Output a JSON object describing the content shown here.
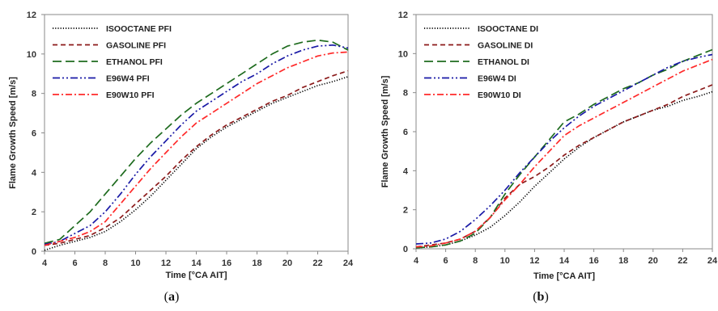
{
  "chart_data": [
    {
      "type": "line",
      "caption_prefix": "(",
      "caption_letter": "a",
      "caption_suffix": ")",
      "xlabel": "Time [°CA AIT]",
      "ylabel": "Flame Growth Speed [m/s]",
      "xlim": [
        4,
        24
      ],
      "ylim": [
        0,
        12
      ],
      "xticks": [
        "4",
        "6",
        "8",
        "10",
        "12",
        "14",
        "16",
        "18",
        "20",
        "22",
        "24"
      ],
      "yticks": [
        "0",
        "2",
        "4",
        "6",
        "8",
        "10",
        "12"
      ],
      "legend_position": "top-left",
      "grid": false,
      "series": [
        {
          "name": "ISOOCTANE PFI",
          "color": "#000000",
          "dash": "dotted",
          "x": [
            4,
            5,
            6,
            7,
            8,
            9,
            10,
            11,
            12,
            13,
            14,
            15,
            16,
            17,
            18,
            19,
            20,
            21,
            22,
            23,
            24
          ],
          "y": [
            0.05,
            0.3,
            0.5,
            0.7,
            1.0,
            1.5,
            2.1,
            2.8,
            3.6,
            4.4,
            5.2,
            5.8,
            6.3,
            6.7,
            7.1,
            7.5,
            7.8,
            8.1,
            8.4,
            8.6,
            8.85
          ]
        },
        {
          "name": "GASOLINE PFI",
          "color": "#8b1a1a",
          "dash": "dashed",
          "x": [
            4,
            5,
            6,
            7,
            8,
            9,
            10,
            11,
            12,
            13,
            14,
            15,
            16,
            17,
            18,
            19,
            20,
            21,
            22,
            23,
            24
          ],
          "y": [
            0.3,
            0.4,
            0.6,
            0.8,
            1.2,
            1.7,
            2.4,
            3.1,
            3.8,
            4.6,
            5.3,
            5.9,
            6.4,
            6.8,
            7.2,
            7.6,
            7.9,
            8.3,
            8.6,
            8.9,
            9.15
          ]
        },
        {
          "name": "ETHANOL PFI",
          "color": "#1e6b1e",
          "dash": "longdash",
          "x": [
            4,
            5,
            6,
            7,
            8,
            9,
            10,
            11,
            12,
            13,
            14,
            15,
            16,
            17,
            18,
            19,
            20,
            21,
            22,
            23,
            24
          ],
          "y": [
            0.4,
            0.6,
            1.3,
            2.0,
            2.9,
            3.8,
            4.7,
            5.5,
            6.2,
            6.9,
            7.5,
            8.0,
            8.5,
            9.0,
            9.5,
            10.0,
            10.4,
            10.6,
            10.7,
            10.6,
            10.2
          ]
        },
        {
          "name": "E96W4 PFI",
          "color": "#1a1aa6",
          "dash": "dashdotdot",
          "x": [
            4,
            5,
            6,
            7,
            8,
            9,
            10,
            11,
            12,
            13,
            14,
            15,
            16,
            17,
            18,
            19,
            20,
            21,
            22,
            23,
            24
          ],
          "y": [
            0.35,
            0.5,
            0.9,
            1.3,
            2.0,
            2.9,
            3.9,
            4.8,
            5.6,
            6.4,
            7.1,
            7.6,
            8.1,
            8.6,
            9.0,
            9.5,
            9.9,
            10.2,
            10.4,
            10.45,
            10.3
          ]
        },
        {
          "name": "E90W10 PFI",
          "color": "#ff2a2a",
          "dash": "dashdot",
          "x": [
            4,
            5,
            6,
            7,
            8,
            9,
            10,
            11,
            12,
            13,
            14,
            15,
            16,
            17,
            18,
            19,
            20,
            21,
            22,
            23,
            24
          ],
          "y": [
            0.3,
            0.5,
            0.7,
            1.0,
            1.5,
            2.4,
            3.3,
            4.2,
            5.0,
            5.8,
            6.5,
            7.0,
            7.5,
            8.0,
            8.5,
            8.9,
            9.3,
            9.6,
            9.9,
            10.05,
            10.1
          ]
        }
      ]
    },
    {
      "type": "line",
      "caption_prefix": "(",
      "caption_letter": "b",
      "caption_suffix": ")",
      "xlabel": "Time [°CA AIT]",
      "ylabel": "Flame Growth Speed [m/s]",
      "xlim": [
        4,
        24
      ],
      "ylim": [
        0,
        12
      ],
      "xticks": [
        "4",
        "6",
        "8",
        "10",
        "12",
        "14",
        "16",
        "18",
        "20",
        "22",
        "24"
      ],
      "yticks": [
        "0",
        "2",
        "4",
        "6",
        "8",
        "10",
        "12"
      ],
      "legend_position": "top-left",
      "grid": false,
      "series": [
        {
          "name": "ISOOCTANE DI",
          "color": "#000000",
          "dash": "dotted",
          "x": [
            4,
            5,
            6,
            7,
            8,
            9,
            10,
            11,
            12,
            13,
            14,
            15,
            16,
            17,
            18,
            19,
            20,
            21,
            22,
            23,
            24
          ],
          "y": [
            0.05,
            0.1,
            0.2,
            0.4,
            0.7,
            1.1,
            1.7,
            2.4,
            3.2,
            3.9,
            4.6,
            5.2,
            5.7,
            6.1,
            6.5,
            6.8,
            7.1,
            7.3,
            7.6,
            7.8,
            8.05
          ]
        },
        {
          "name": "GASOLINE DI",
          "color": "#8b1a1a",
          "dash": "dashed",
          "x": [
            4,
            5,
            6,
            7,
            8,
            9,
            10,
            11,
            12,
            13,
            14,
            15,
            16,
            17,
            18,
            19,
            20,
            21,
            22,
            23,
            24
          ],
          "y": [
            0.1,
            0.2,
            0.3,
            0.5,
            0.9,
            1.6,
            2.6,
            3.3,
            3.7,
            4.2,
            4.8,
            5.3,
            5.7,
            6.1,
            6.5,
            6.8,
            7.1,
            7.4,
            7.8,
            8.1,
            8.4
          ]
        },
        {
          "name": "ETHANOL DI",
          "color": "#1e6b1e",
          "dash": "longdash",
          "x": [
            4,
            5,
            6,
            7,
            8,
            9,
            10,
            11,
            12,
            13,
            14,
            15,
            16,
            17,
            18,
            19,
            20,
            21,
            22,
            23,
            24
          ],
          "y": [
            0.05,
            0.1,
            0.2,
            0.4,
            0.8,
            1.6,
            2.8,
            3.8,
            4.7,
            5.6,
            6.5,
            6.9,
            7.4,
            7.8,
            8.2,
            8.5,
            8.9,
            9.2,
            9.6,
            9.9,
            10.2
          ]
        },
        {
          "name": "E96W4 DI",
          "color": "#1a1aa6",
          "dash": "dashdotdot",
          "x": [
            4,
            5,
            6,
            7,
            8,
            9,
            10,
            11,
            12,
            13,
            14,
            15,
            16,
            17,
            18,
            19,
            20,
            21,
            22,
            23,
            24
          ],
          "y": [
            0.25,
            0.3,
            0.5,
            0.9,
            1.5,
            2.2,
            3.0,
            3.9,
            4.7,
            5.5,
            6.2,
            6.8,
            7.3,
            7.7,
            8.1,
            8.5,
            8.9,
            9.3,
            9.6,
            9.8,
            9.95
          ]
        },
        {
          "name": "E90W10 DI",
          "color": "#ff2a2a",
          "dash": "dashdot",
          "x": [
            4,
            5,
            6,
            7,
            8,
            9,
            10,
            11,
            12,
            13,
            14,
            15,
            16,
            17,
            18,
            19,
            20,
            21,
            22,
            23,
            24
          ],
          "y": [
            0.1,
            0.15,
            0.3,
            0.5,
            0.9,
            1.6,
            2.5,
            3.3,
            4.2,
            5.0,
            5.8,
            6.3,
            6.7,
            7.1,
            7.5,
            7.9,
            8.3,
            8.7,
            9.1,
            9.4,
            9.7
          ]
        }
      ]
    }
  ]
}
